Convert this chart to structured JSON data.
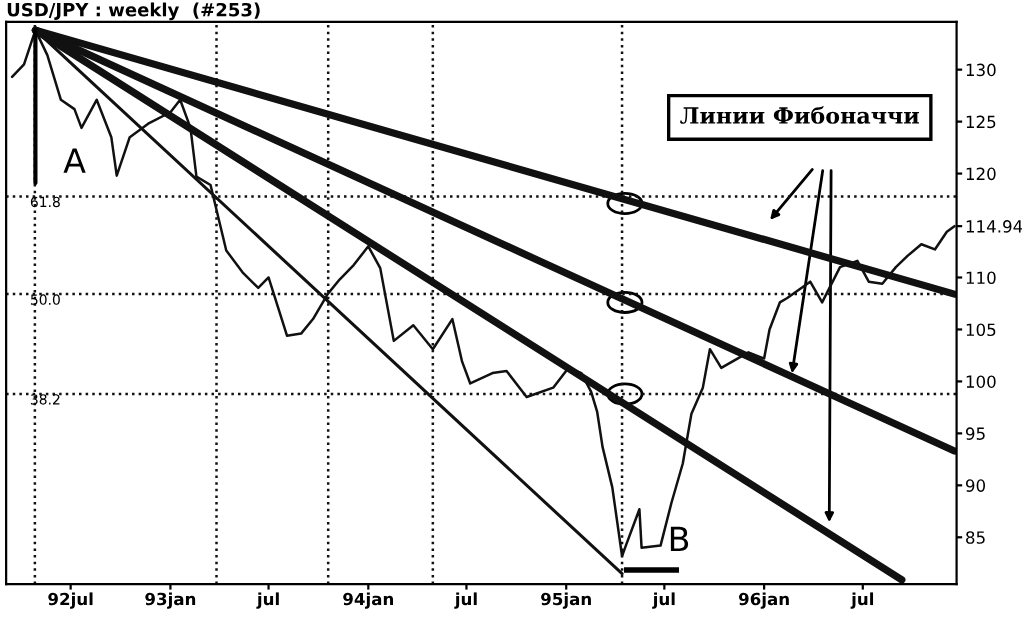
{
  "chart_data": {
    "type": "line",
    "title": "USD/JPY : weekly  (#253)",
    "series": [
      {
        "color": "#111111",
        "x": [
          "1992-03-15",
          "1992-04-06",
          "1992-04-27",
          "1992-05-19",
          "1992-06-13",
          "1992-07-08",
          "1992-07-21",
          "1992-08-18",
          "1992-09-14",
          "1992-09-24",
          "1992-10-18",
          "1992-11-21",
          "1993-01-01",
          "1993-01-19",
          "1993-02-07",
          "1993-02-18",
          "1993-03-16",
          "1993-04-14",
          "1993-05-14",
          "1993-06-12",
          "1993-07-01",
          "1993-08-04",
          "1993-08-30",
          "1993-09-21",
          "1993-10-18",
          "1993-11-09",
          "1993-12-05",
          "1994-01-01",
          "1994-01-23",
          "1994-02-17",
          "1994-03-25",
          "1994-04-30",
          "1994-06-05",
          "1994-06-23",
          "1994-07-08",
          "1994-08-18",
          "1994-09-13",
          "1994-10-20",
          "1994-12-08",
          "1995-01-05",
          "1995-01-29",
          "1995-02-16",
          "1995-02-27",
          "1995-03-09",
          "1995-03-27",
          "1995-04-14",
          "1995-04-21",
          "1995-05-16",
          "1995-05-20",
          "1995-06-24",
          "1995-07-14",
          "1995-08-04",
          "1995-08-20",
          "1995-09-10",
          "1995-09-23",
          "1995-10-14",
          "1995-12-03",
          "1996-01-01",
          "1996-01-11",
          "1996-01-30",
          "1996-02-12",
          "1996-03-26",
          "1996-04-17",
          "1996-05-20",
          "1996-06-21",
          "1996-07-12",
          "1996-08-06",
          "1996-08-31",
          "1996-09-22",
          "1996-10-17",
          "1996-11-11",
          "1996-12-03",
          "1996-12-17"
        ],
        "values": [
          129.3,
          130.5,
          133.8,
          131.4,
          127.1,
          126.2,
          124.4,
          127.1,
          123.5,
          119.8,
          123.5,
          124.8,
          125.9,
          127.1,
          124.4,
          119.7,
          118.9,
          112.6,
          110.5,
          109.0,
          110.0,
          104.4,
          104.6,
          106.0,
          108.4,
          109.8,
          111.2,
          113.0,
          110.9,
          103.9,
          105.4,
          103.1,
          106.0,
          101.9,
          99.8,
          100.8,
          101.0,
          98.5,
          99.4,
          101.3,
          100.8,
          99.0,
          97.1,
          93.7,
          89.8,
          83.2,
          84.2,
          87.7,
          84.0,
          84.2,
          88.3,
          92.1,
          96.9,
          99.4,
          103.1,
          101.3,
          102.8,
          102.2,
          105.0,
          107.6,
          108.0,
          109.6,
          107.6,
          111.0,
          111.6,
          109.6,
          109.4,
          111.0,
          112.1,
          113.2,
          112.7,
          114.4,
          114.94
        ]
      },
      {
        "color": "#111111",
        "x": [
          "1992-04-27",
          "1996-12-17"
        ],
        "values": [
          133.8,
          108.4
        ]
      },
      {
        "color": "#111111",
        "x": [
          "1992-04-27",
          "1996-12-17"
        ],
        "values": [
          133.8,
          93.3
        ]
      },
      {
        "color": "#111111",
        "x": [
          "1992-04-27",
          "1996-09-11"
        ],
        "values": [
          133.8,
          80.9
        ]
      },
      {
        "color": "#111111",
        "x": [
          "1992-04-27",
          "1995-04-14"
        ],
        "values": [
          133.8,
          81.5
        ]
      }
    ],
    "xlim": [
      "1992-03-04",
      "1996-12-21"
    ],
    "xticks": [
      {
        "value": "1992-07-01",
        "label": "92jul"
      },
      {
        "value": "1993-01-01",
        "label": "93jan"
      },
      {
        "value": "1993-07-01",
        "label": "jul"
      },
      {
        "value": "1994-01-01",
        "label": "94jan"
      },
      {
        "value": "1994-07-01",
        "label": "jul"
      },
      {
        "value": "1995-01-01",
        "label": "95jan"
      },
      {
        "value": "1995-07-01",
        "label": "jul"
      },
      {
        "value": "1996-01-01",
        "label": "96jan"
      },
      {
        "value": "1996-07-01",
        "label": "jul"
      }
    ],
    "ylim": [
      80.5,
      134.6
    ],
    "yticks": [
      85,
      90,
      95,
      100,
      105,
      110,
      114.94,
      120,
      125,
      130
    ],
    "ref_lines": [
      {
        "axis": "y",
        "value": 117.8,
        "line_style": "dotted",
        "color": "#111111"
      },
      {
        "axis": "y",
        "value": 108.4,
        "line_style": "dotted",
        "color": "#111111"
      },
      {
        "axis": "y",
        "value": 98.8,
        "line_style": "dotted",
        "color": "#111111"
      },
      {
        "axis": "x",
        "value": "1992-04-26",
        "line_style": "dotted",
        "color": "#111111"
      },
      {
        "axis": "x",
        "value": "1993-03-27",
        "line_style": "dotted",
        "color": "#111111"
      },
      {
        "axis": "x",
        "value": "1993-10-19",
        "line_style": "dotted",
        "color": "#111111"
      },
      {
        "axis": "x",
        "value": "1994-04-30",
        "line_style": "dotted",
        "color": "#111111"
      },
      {
        "axis": "x",
        "value": "1995-04-14",
        "line_style": "dotted",
        "color": "#111111"
      }
    ],
    "annotations": [
      {
        "text": "A",
        "x": "1992-04-27",
        "y": 133.8
      },
      "B",
      "Линии Фибоначчи",
      {
        "text": "61.8",
        "y": 117.8
      },
      {
        "text": "50.0",
        "y": 108.4
      },
      {
        "text": "38.2",
        "y": 98.8
      }
    ],
    "grid": false,
    "legend": false,
    "marker": "none",
    "line_style": "solid"
  }
}
